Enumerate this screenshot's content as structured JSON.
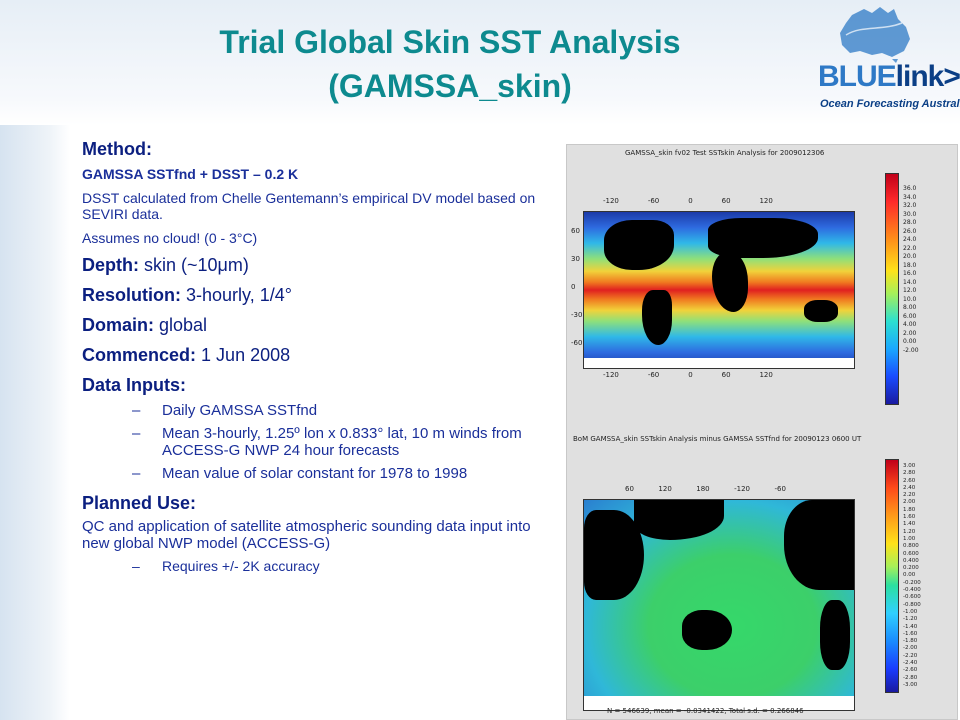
{
  "title": {
    "line1": "Trial Global Skin SST Analysis",
    "line2": "(GAMSSA_skin)"
  },
  "logo": {
    "word_blue": "BLUE",
    "word_link": "link",
    "word_arrow": ">",
    "tagline": "Ocean Forecasting Australia"
  },
  "method": {
    "heading": "Method:",
    "formula": "GAMSSA SSTfnd + DSST – 0.2 K",
    "dsst_text": "DSST calculated from Chelle Gentemann’s empirical DV model based on SEVIRI data.",
    "cloud_text": "Assumes no cloud!  (0 - 3°C)"
  },
  "specs": [
    {
      "label": "Depth:",
      "value": "skin (~10μm)"
    },
    {
      "label": "Resolution:",
      "value": "3-hourly, 1/4°"
    },
    {
      "label": "Domain:",
      "value": "global"
    },
    {
      "label": "Commenced:",
      "value": "1 Jun 2008"
    }
  ],
  "data_inputs": {
    "heading": "Data Inputs:",
    "items": [
      "Daily GAMSSA SSTfnd",
      "Mean 3-hourly, 1.25º lon x 0.833° lat, 10 m winds from ACCESS-G NWP 24 hour forecasts",
      "Mean value of solar constant for 1978 to 1998"
    ]
  },
  "planned_use": {
    "heading": "Planned Use:",
    "text": "QC and application of satellite atmospheric sounding data input into new global NWP model (ACCESS-G)",
    "items": [
      "Requires +/- 2K accuracy"
    ]
  },
  "figure": {
    "top_caption": "GAMSSA_skin fv02 Test SSTskin Analysis for 2009012306",
    "top_lon_labels": [
      "-120",
      "-60",
      "0",
      "60",
      "120"
    ],
    "top_lat_labels": [
      "60",
      "30",
      "0",
      "-30",
      "-60"
    ],
    "top_colorbar": [
      "36.0",
      "34.0",
      "32.0",
      "30.0",
      "28.0",
      "26.0",
      "24.0",
      "22.0",
      "20.0",
      "18.0",
      "16.0",
      "14.0",
      "12.0",
      "10.0",
      "8.00",
      "6.00",
      "4.00",
      "2.00",
      "0.00",
      "-2.00"
    ],
    "bottom_caption": "BoM GAMSSA_skin SSTskin Analysis minus GAMSSA SSTfnd for 20090123 0600 UT",
    "bottom_lon_labels": [
      "60",
      "120",
      "180",
      "-120",
      "-60"
    ],
    "bottom_colorbar": [
      "3.00",
      "2.80",
      "2.60",
      "2.40",
      "2.20",
      "2.00",
      "1.80",
      "1.60",
      "1.40",
      "1.20",
      "1.00",
      "0.800",
      "0.600",
      "0.400",
      "0.200",
      "0.00",
      "-0.200",
      "-0.400",
      "-0.600",
      "-0.800",
      "-1.00",
      "-1.20",
      "-1.40",
      "-1.60",
      "-1.80",
      "-2.00",
      "-2.20",
      "-2.40",
      "-2.60",
      "-2.80",
      "-3.00"
    ],
    "stats": "N = 546639, mean = -0.0341422, Total s.d. = 0.266846"
  }
}
